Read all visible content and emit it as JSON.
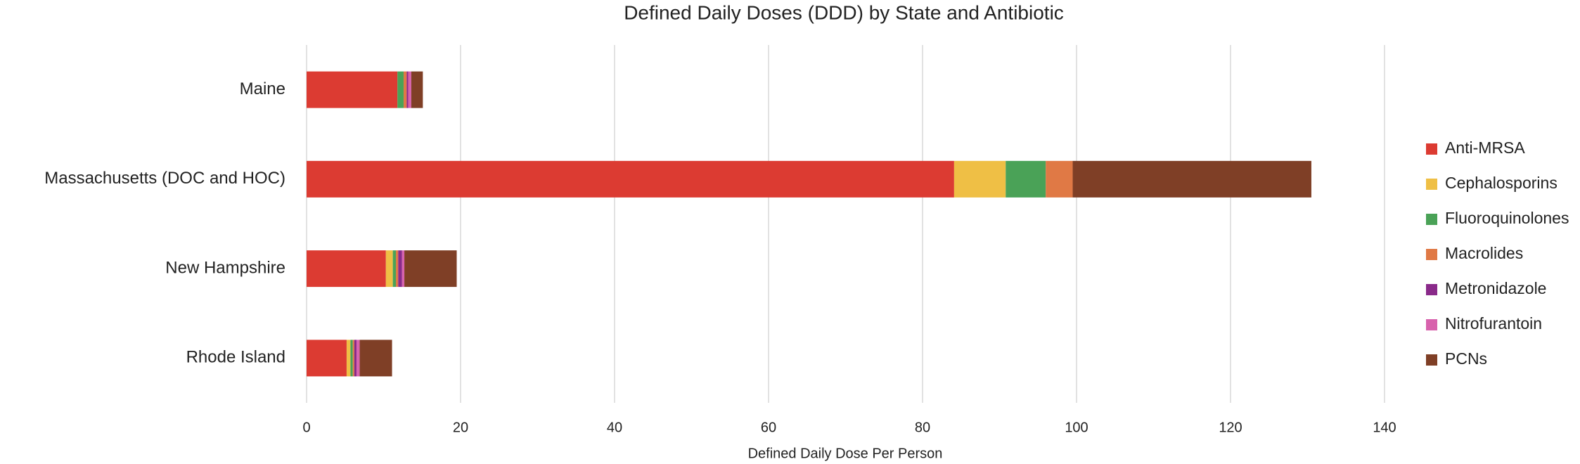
{
  "chart_data": {
    "type": "stacked-bar-horizontal",
    "title": "Defined Daily Doses (DDD) by State and Antibiotic",
    "x_label": "Defined Daily Dose Per Person",
    "categories": [
      "Maine",
      "Massachusetts (DOC and HOC)",
      "New Hampshire",
      "Rhode Island"
    ],
    "series": [
      {
        "name": "Anti-MRSA",
        "color": "#dc3b32",
        "values": [
          11.8,
          84.1,
          10.3,
          5.2
        ]
      },
      {
        "name": "Cephalosporins",
        "color": "#efbf45",
        "values": [
          0,
          6.7,
          0.9,
          0.5
        ]
      },
      {
        "name": "Fluoroquinolones",
        "color": "#4aa257",
        "values": [
          0.8,
          5.2,
          0.4,
          0.3
        ]
      },
      {
        "name": "Macrolides",
        "color": "#e07945",
        "values": [
          0.4,
          3.5,
          0.3,
          0.2
        ]
      },
      {
        "name": "Metronidazole",
        "color": "#8a2a8a",
        "values": [
          0.2,
          0,
          0.5,
          0.3
        ]
      },
      {
        "name": "Nitrofurantoin",
        "color": "#d862ad",
        "values": [
          0.4,
          0,
          0.3,
          0.4
        ]
      },
      {
        "name": "PCNs",
        "color": "#7f3f26",
        "values": [
          1.5,
          31.0,
          6.8,
          4.2
        ]
      }
    ],
    "xlim": [
      0,
      140
    ],
    "xticks": [
      0,
      20,
      40,
      60,
      80,
      100,
      120,
      140
    ],
    "grid": true,
    "legend": "right"
  }
}
